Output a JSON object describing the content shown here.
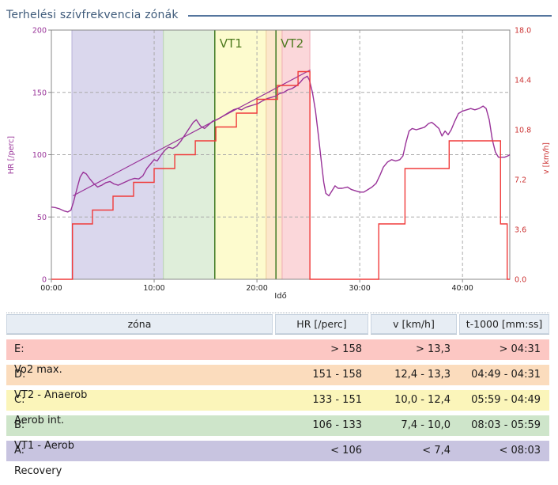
{
  "title": "Terhelési szívfrekvencia zónák",
  "colors": {
    "title": "#3e5a7a",
    "rule": "#54759e",
    "hr_line": "#993399",
    "speed_line": "#f03b3b",
    "vt_line": "#3f7a23",
    "vt_label": "#4e7a1f",
    "grid": "#aaaaaa",
    "plot_border": "#888888",
    "tick": "#888888",
    "x_tick_text": "#222222",
    "left_axis_text": "#993399",
    "right_axis_text": "#cc3333",
    "header_bg": "#e7edf4"
  },
  "chart_data": {
    "type": "line",
    "title": "",
    "xlabel": "Idő",
    "ylabel_left": "HR [/perc]",
    "ylabel_right": "v [km/h]",
    "x_range_minutes": [
      0,
      44.6
    ],
    "x_ticks": [
      {
        "t": 0,
        "label": "00:00"
      },
      {
        "t": 10,
        "label": "10:00"
      },
      {
        "t": 20,
        "label": "20:00"
      },
      {
        "t": 30,
        "label": "30:00"
      },
      {
        "t": 40,
        "label": "40:00"
      }
    ],
    "y_left": {
      "range": [
        0,
        200
      ],
      "ticks": [
        {
          "v": 0,
          "label": "0"
        },
        {
          "v": 50,
          "label": "50"
        },
        {
          "v": 100,
          "label": "100"
        },
        {
          "v": 150,
          "label": "150"
        },
        {
          "v": 200,
          "label": "200"
        }
      ]
    },
    "y_right": {
      "range": [
        0,
        18
      ],
      "ticks": [
        {
          "v": 0,
          "label": "0.0"
        },
        {
          "v": 3.6,
          "label": "3.6"
        },
        {
          "v": 7.2,
          "label": "7.2"
        },
        {
          "v": 10.8,
          "label": "10.8"
        },
        {
          "v": 14.4,
          "label": "14.4"
        },
        {
          "v": 18,
          "label": "18.0"
        }
      ]
    },
    "grid_minutes": [
      10,
      20,
      30,
      40
    ],
    "grid_hr": [
      50,
      100,
      150,
      200
    ],
    "zone_bands": [
      {
        "zone": "A",
        "t_from": 2.0,
        "t_to": 10.9,
        "color": "#dad7ed",
        "edge": "#b9b3d8"
      },
      {
        "zone": "B",
        "t_from": 10.9,
        "t_to": 15.9,
        "color": "#dfeeda",
        "edge": "#bcd8b2"
      },
      {
        "zone": "C",
        "t_from": 15.9,
        "t_to": 20.9,
        "color": "#fdfbce",
        "edge": "#e9e3a0"
      },
      {
        "zone": "D",
        "t_from": 20.9,
        "t_to": 22.45,
        "color": "#fce7cb",
        "edge": "#eccda2"
      },
      {
        "zone": "E",
        "t_from": 22.45,
        "t_to": 25.15,
        "color": "#fbd7da",
        "edge": "#efadb5"
      }
    ],
    "vt_markers": [
      {
        "label": "VT1",
        "t": 15.9
      },
      {
        "label": "VT2",
        "t": 21.85
      }
    ],
    "series": [
      {
        "name": "HR",
        "axis": "left",
        "color": "#993399",
        "width": 1.4,
        "points": [
          [
            0,
            58
          ],
          [
            0.4,
            57.5
          ],
          [
            0.8,
            56.5
          ],
          [
            1.2,
            55
          ],
          [
            1.6,
            54
          ],
          [
            1.9,
            55.5
          ],
          [
            2.15,
            62
          ],
          [
            2.5,
            73
          ],
          [
            2.8,
            82
          ],
          [
            3.1,
            86
          ],
          [
            3.4,
            84.5
          ],
          [
            3.7,
            81
          ],
          [
            4.1,
            77
          ],
          [
            4.5,
            74
          ],
          [
            4.9,
            75.5
          ],
          [
            5.3,
            77.5
          ],
          [
            5.7,
            78.5
          ],
          [
            6.1,
            76.5
          ],
          [
            6.5,
            75.5
          ],
          [
            6.9,
            77
          ],
          [
            7.3,
            78.5
          ],
          [
            7.7,
            80
          ],
          [
            8.1,
            81
          ],
          [
            8.5,
            80.5
          ],
          [
            8.9,
            83
          ],
          [
            9.3,
            89
          ],
          [
            9.7,
            93
          ],
          [
            10,
            96
          ],
          [
            10.3,
            95
          ],
          [
            10.7,
            100
          ],
          [
            11.1,
            104
          ],
          [
            11.4,
            106
          ],
          [
            11.8,
            105
          ],
          [
            12.2,
            107
          ],
          [
            12.6,
            111
          ],
          [
            13,
            116
          ],
          [
            13.4,
            121
          ],
          [
            13.8,
            126
          ],
          [
            14.1,
            128
          ],
          [
            14.5,
            123
          ],
          [
            14.9,
            121
          ],
          [
            15.3,
            124
          ],
          [
            15.7,
            127
          ],
          [
            16.1,
            128
          ],
          [
            16.5,
            130
          ],
          [
            16.9,
            132
          ],
          [
            17.3,
            134
          ],
          [
            17.7,
            136
          ],
          [
            18.1,
            137
          ],
          [
            18.5,
            136
          ],
          [
            18.9,
            138
          ],
          [
            19.3,
            139
          ],
          [
            19.7,
            140
          ],
          [
            20.1,
            141
          ],
          [
            20.5,
            143
          ],
          [
            21,
            145
          ],
          [
            21.4,
            146
          ],
          [
            21.8,
            147
          ],
          [
            22.2,
            149
          ],
          [
            22.6,
            150
          ],
          [
            23,
            152
          ],
          [
            23.4,
            153
          ],
          [
            23.8,
            155
          ],
          [
            24.2,
            158
          ],
          [
            24.5,
            161
          ],
          [
            24.9,
            163
          ],
          [
            25.1,
            160
          ],
          [
            25.4,
            150
          ],
          [
            25.7,
            135
          ],
          [
            26,
            114
          ],
          [
            26.3,
            92
          ],
          [
            26.5,
            78
          ],
          [
            26.7,
            69
          ],
          [
            27,
            67
          ],
          [
            27.3,
            71
          ],
          [
            27.6,
            75
          ],
          [
            27.9,
            73
          ],
          [
            28.3,
            73
          ],
          [
            28.8,
            74
          ],
          [
            29.2,
            72
          ],
          [
            29.6,
            71
          ],
          [
            30,
            70
          ],
          [
            30.4,
            70
          ],
          [
            30.8,
            72
          ],
          [
            31.2,
            74
          ],
          [
            31.6,
            77
          ],
          [
            32,
            84
          ],
          [
            32.3,
            90
          ],
          [
            32.7,
            94
          ],
          [
            33.1,
            96
          ],
          [
            33.5,
            95
          ],
          [
            33.9,
            96
          ],
          [
            34.2,
            99
          ],
          [
            34.5,
            110
          ],
          [
            34.8,
            119
          ],
          [
            35.1,
            121
          ],
          [
            35.5,
            120
          ],
          [
            35.9,
            121
          ],
          [
            36.3,
            122
          ],
          [
            36.7,
            125
          ],
          [
            37,
            126
          ],
          [
            37.3,
            124
          ],
          [
            37.7,
            121
          ],
          [
            38,
            115
          ],
          [
            38.3,
            119
          ],
          [
            38.6,
            116
          ],
          [
            38.9,
            120
          ],
          [
            39.2,
            126
          ],
          [
            39.6,
            133
          ],
          [
            40,
            135
          ],
          [
            40.4,
            136
          ],
          [
            40.8,
            137
          ],
          [
            41.2,
            136
          ],
          [
            41.6,
            137
          ],
          [
            42,
            139
          ],
          [
            42.3,
            137
          ],
          [
            42.6,
            128
          ],
          [
            42.9,
            112
          ],
          [
            43.2,
            102
          ],
          [
            43.5,
            98
          ],
          [
            43.8,
            98
          ],
          [
            44.1,
            98
          ],
          [
            44.4,
            99
          ],
          [
            44.6,
            100
          ]
        ]
      },
      {
        "name": "HR trend",
        "axis": "left",
        "color": "#993399",
        "width": 1.2,
        "points": [
          [
            2.1,
            67
          ],
          [
            25.2,
            168
          ]
        ]
      },
      {
        "name": "v",
        "axis": "right",
        "color": "#f03b3b",
        "width": 1.4,
        "steps": [
          [
            0,
            2.05,
            0
          ],
          [
            2.05,
            4,
            4
          ],
          [
            4,
            6,
            5
          ],
          [
            6,
            8,
            6
          ],
          [
            8,
            10,
            7
          ],
          [
            10,
            12,
            8
          ],
          [
            12,
            14,
            9
          ],
          [
            14,
            16,
            10
          ],
          [
            16,
            18,
            11
          ],
          [
            18,
            20,
            12
          ],
          [
            20,
            22,
            13
          ],
          [
            22,
            24,
            14
          ],
          [
            24,
            25.15,
            15
          ],
          [
            25.15,
            31.85,
            0
          ],
          [
            31.85,
            34.4,
            4
          ],
          [
            34.4,
            38.7,
            8
          ],
          [
            38.7,
            43.7,
            10
          ],
          [
            43.7,
            44.35,
            4
          ],
          [
            44.35,
            44.6,
            0
          ]
        ]
      }
    ]
  },
  "table": {
    "headers": [
      "zóna",
      "HR [/perc]",
      "v [km/h]",
      "t-1000 [mm:ss]"
    ],
    "rows": [
      {
        "letter": "E:",
        "name": "Vo2 max.",
        "hr": "> 158",
        "v": "> 13,3",
        "t1000": "> 04:31",
        "bg": "#fcc7c3"
      },
      {
        "letter": "D:",
        "name": "VT2 - Anaerob",
        "hr": "151 - 158",
        "v": "12,4 - 13,3",
        "t1000": "04:49 - 04:31",
        "bg": "#fbdcbd"
      },
      {
        "letter": "C:",
        "name": "Aerob int.",
        "hr": "133 - 151",
        "v": "10,0 - 12,4",
        "t1000": "05:59 - 04:49",
        "bg": "#fbf5ba"
      },
      {
        "letter": "B:",
        "name": "VT1 - Aerob",
        "hr": "106 - 133",
        "v": "7,4 - 10,0",
        "t1000": "08:03 - 05:59",
        "bg": "#cee5ca"
      },
      {
        "letter": "A:",
        "name": "Recovery",
        "hr": "< 106",
        "v": "< 7,4",
        "t1000": "< 08:03",
        "bg": "#c8c4e0"
      }
    ]
  }
}
